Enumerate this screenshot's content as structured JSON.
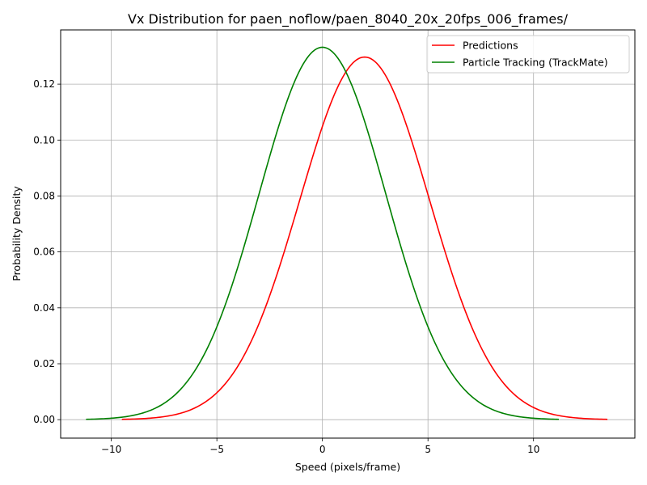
{
  "chart_data": {
    "type": "line",
    "title": "Vx Distribution for paen_noflow/paen_8040_20x_20fps_006_frames/",
    "xlabel": "Speed (pixels/frame)",
    "ylabel": "Probability Density",
    "xlim": [
      -12.4,
      14.8
    ],
    "ylim": [
      -0.0066,
      0.1394
    ],
    "xticks": [
      -10,
      -5,
      0,
      5,
      10
    ],
    "xtick_labels": [
      "−10",
      "−5",
      "0",
      "5",
      "10"
    ],
    "yticks": [
      0.0,
      0.02,
      0.04,
      0.06,
      0.08,
      0.1,
      0.12
    ],
    "ytick_labels": [
      "0.00",
      "0.02",
      "0.04",
      "0.06",
      "0.08",
      "0.10",
      "0.12"
    ],
    "grid": true,
    "legend_position": "top-right",
    "series": [
      {
        "name": "Predictions",
        "color": "#ff0000",
        "distribution": "normal",
        "mean": 2.0,
        "std": 3.07,
        "x_range": [
          -9.5,
          13.5
        ],
        "peak_density": 0.1297
      },
      {
        "name": "Particle Tracking (TrackMate)",
        "color": "#008000",
        "distribution": "normal",
        "mean": 0.0,
        "std": 3.0,
        "x_range": [
          -11.2,
          11.2
        ],
        "peak_density": 0.1332
      }
    ]
  }
}
